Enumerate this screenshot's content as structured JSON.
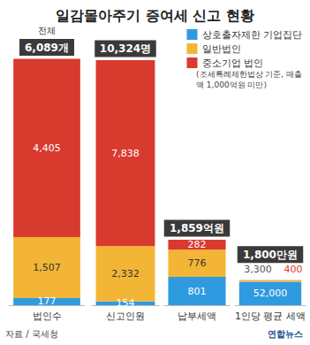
{
  "title": "일감몰아주기 증여세 신고 현황",
  "note": "(조세특례제한법상 기준, 매출액 1,000억원 미만)",
  "source": "자료 / 국세청",
  "credit": "연합뉴스",
  "chart_data": [
    {
      "type": "bar",
      "categories": [
        "법인수"
      ],
      "stacked": true,
      "data_labels": true,
      "tick_labels": "x",
      "grid": false,
      "legend": "top-right",
      "ylim": [
        0,
        6100
      ],
      "total_caption": "전체",
      "total_label": "6,089개",
      "series": [
        {
          "name": "상호출자제한 기업집단",
          "color": "#2e9be0",
          "values": [
            177
          ]
        },
        {
          "name": "일반법인",
          "color": "#f2b535",
          "values": [
            1507
          ],
          "value_labels": [
            "1,507"
          ]
        },
        {
          "name": "중소기업 법인",
          "color": "#d93a2e",
          "values": [
            4405
          ],
          "value_labels": [
            "4,405"
          ]
        }
      ]
    },
    {
      "type": "bar",
      "categories": [
        "신고인원"
      ],
      "stacked": true,
      "data_labels": true,
      "tick_labels": "x",
      "grid": false,
      "ylim": [
        0,
        10400
      ],
      "total_label": "10,324명",
      "series": [
        {
          "name": "상호출자제한 기업집단",
          "color": "#2e9be0",
          "values": [
            154
          ]
        },
        {
          "name": "일반법인",
          "color": "#f2b535",
          "values": [
            2332
          ],
          "value_labels": [
            "2,332"
          ]
        },
        {
          "name": "중소기업 법인",
          "color": "#d93a2e",
          "values": [
            7838
          ],
          "value_labels": [
            "7,838"
          ]
        }
      ]
    },
    {
      "type": "bar",
      "categories": [
        "납부세액"
      ],
      "stacked": true,
      "data_labels": true,
      "tick_labels": "x",
      "grid": false,
      "ylim": [
        0,
        7000
      ],
      "total_label": "1,859억원",
      "series": [
        {
          "name": "상호출자제한 기업집단",
          "color": "#2e9be0",
          "values": [
            801
          ]
        },
        {
          "name": "일반법인",
          "color": "#f2b535",
          "values": [
            776
          ]
        },
        {
          "name": "중소기업 법인",
          "color": "#d93a2e",
          "values": [
            282
          ]
        }
      ]
    },
    {
      "type": "bar",
      "categories": [
        "1인당 평균 세액"
      ],
      "stacked": true,
      "data_labels": true,
      "tick_labels": "x",
      "grid": false,
      "ylim": [
        0,
        550000
      ],
      "total_label": "1,800만원",
      "series": [
        {
          "name": "상호출자제한 기업집단",
          "color": "#2e9be0",
          "values": [
            52000
          ],
          "value_labels": [
            "52,000"
          ]
        },
        {
          "name": "일반법인",
          "color": "#f2b535",
          "values": [
            3300
          ],
          "value_labels": [
            "3,300"
          ]
        },
        {
          "name": "중소기업 법인",
          "color": "#d93a2e",
          "values": [
            400
          ]
        }
      ]
    }
  ]
}
